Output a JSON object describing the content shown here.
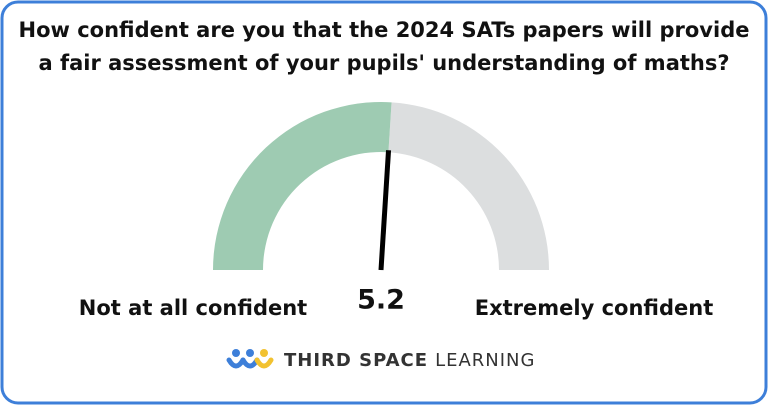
{
  "chart_data": {
    "type": "gauge",
    "title_lines": [
      "How confident are you that the 2024 SATs papers will provide",
      "a fair assessment of your pupils' understanding of maths?"
    ],
    "value": 5.2,
    "range": [
      0,
      10
    ],
    "min_label": "Not at all confident",
    "max_label": "Extremely confident",
    "fill_color": "#9ecbb2",
    "track_color": "#dcdedf",
    "needle_color": "#000000"
  },
  "brand": {
    "name_bold": "THIRD SPACE",
    "name_light": "LEARNING"
  }
}
